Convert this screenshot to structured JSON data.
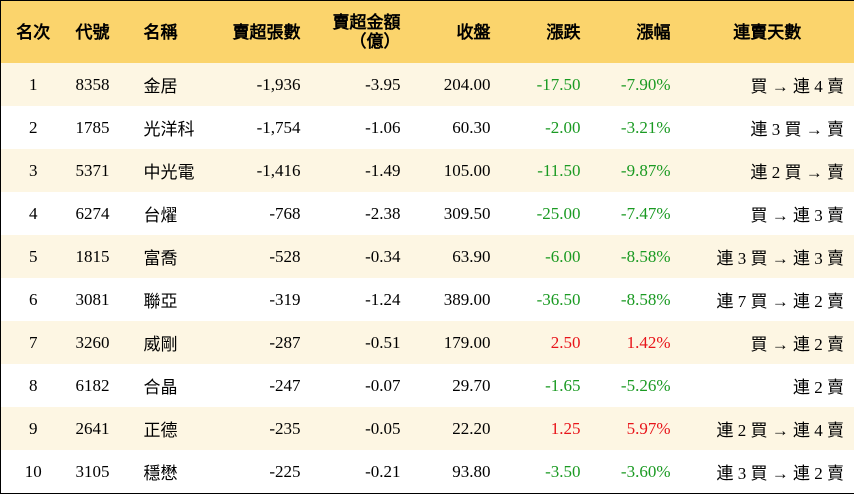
{
  "table": {
    "header": [
      "名次",
      "代號",
      "名稱",
      "賣超張數",
      "賣超金額\n（億）",
      "收盤",
      "漲跌",
      "漲幅",
      "連賣天數"
    ],
    "rows": [
      [
        "1",
        "8358",
        "金居",
        "-1,936",
        "-3.95",
        "204.00",
        "-17.50",
        "-7.90%",
        "買 → 連 4 賣"
      ],
      [
        "2",
        "1785",
        "光洋科",
        "-1,754",
        "-1.06",
        "60.30",
        "-2.00",
        "-3.21%",
        "連 3 買 → 賣"
      ],
      [
        "3",
        "5371",
        "中光電",
        "-1,416",
        "-1.49",
        "105.00",
        "-11.50",
        "-9.87%",
        "連 2 買 → 賣"
      ],
      [
        "4",
        "6274",
        "台燿",
        "-768",
        "-2.38",
        "309.50",
        "-25.00",
        "-7.47%",
        "買 → 連 3 賣"
      ],
      [
        "5",
        "1815",
        "富喬",
        "-528",
        "-0.34",
        "63.90",
        "-6.00",
        "-8.58%",
        "連 3 買 → 連 3 賣"
      ],
      [
        "6",
        "3081",
        "聯亞",
        "-319",
        "-1.24",
        "389.00",
        "-36.50",
        "-8.58%",
        "連 7 買 → 連 2 賣"
      ],
      [
        "7",
        "3260",
        "威剛",
        "-287",
        "-0.51",
        "179.00",
        "2.50",
        "1.42%",
        "買 → 連 2 賣"
      ],
      [
        "8",
        "6182",
        "合晶",
        "-247",
        "-0.07",
        "29.70",
        "-1.65",
        "-5.26%",
        "連 2 賣"
      ],
      [
        "9",
        "2641",
        "正德",
        "-235",
        "-0.05",
        "22.20",
        "1.25",
        "5.97%",
        "連 2 買 → 連 4 賣"
      ],
      [
        "10",
        "3105",
        "穩懋",
        "-225",
        "-0.21",
        "93.80",
        "-3.50",
        "-3.60%",
        "連 3 買 → 連 2 賣"
      ]
    ],
    "up_color": "#e8141a",
    "down_color": "#1a9a22"
  }
}
